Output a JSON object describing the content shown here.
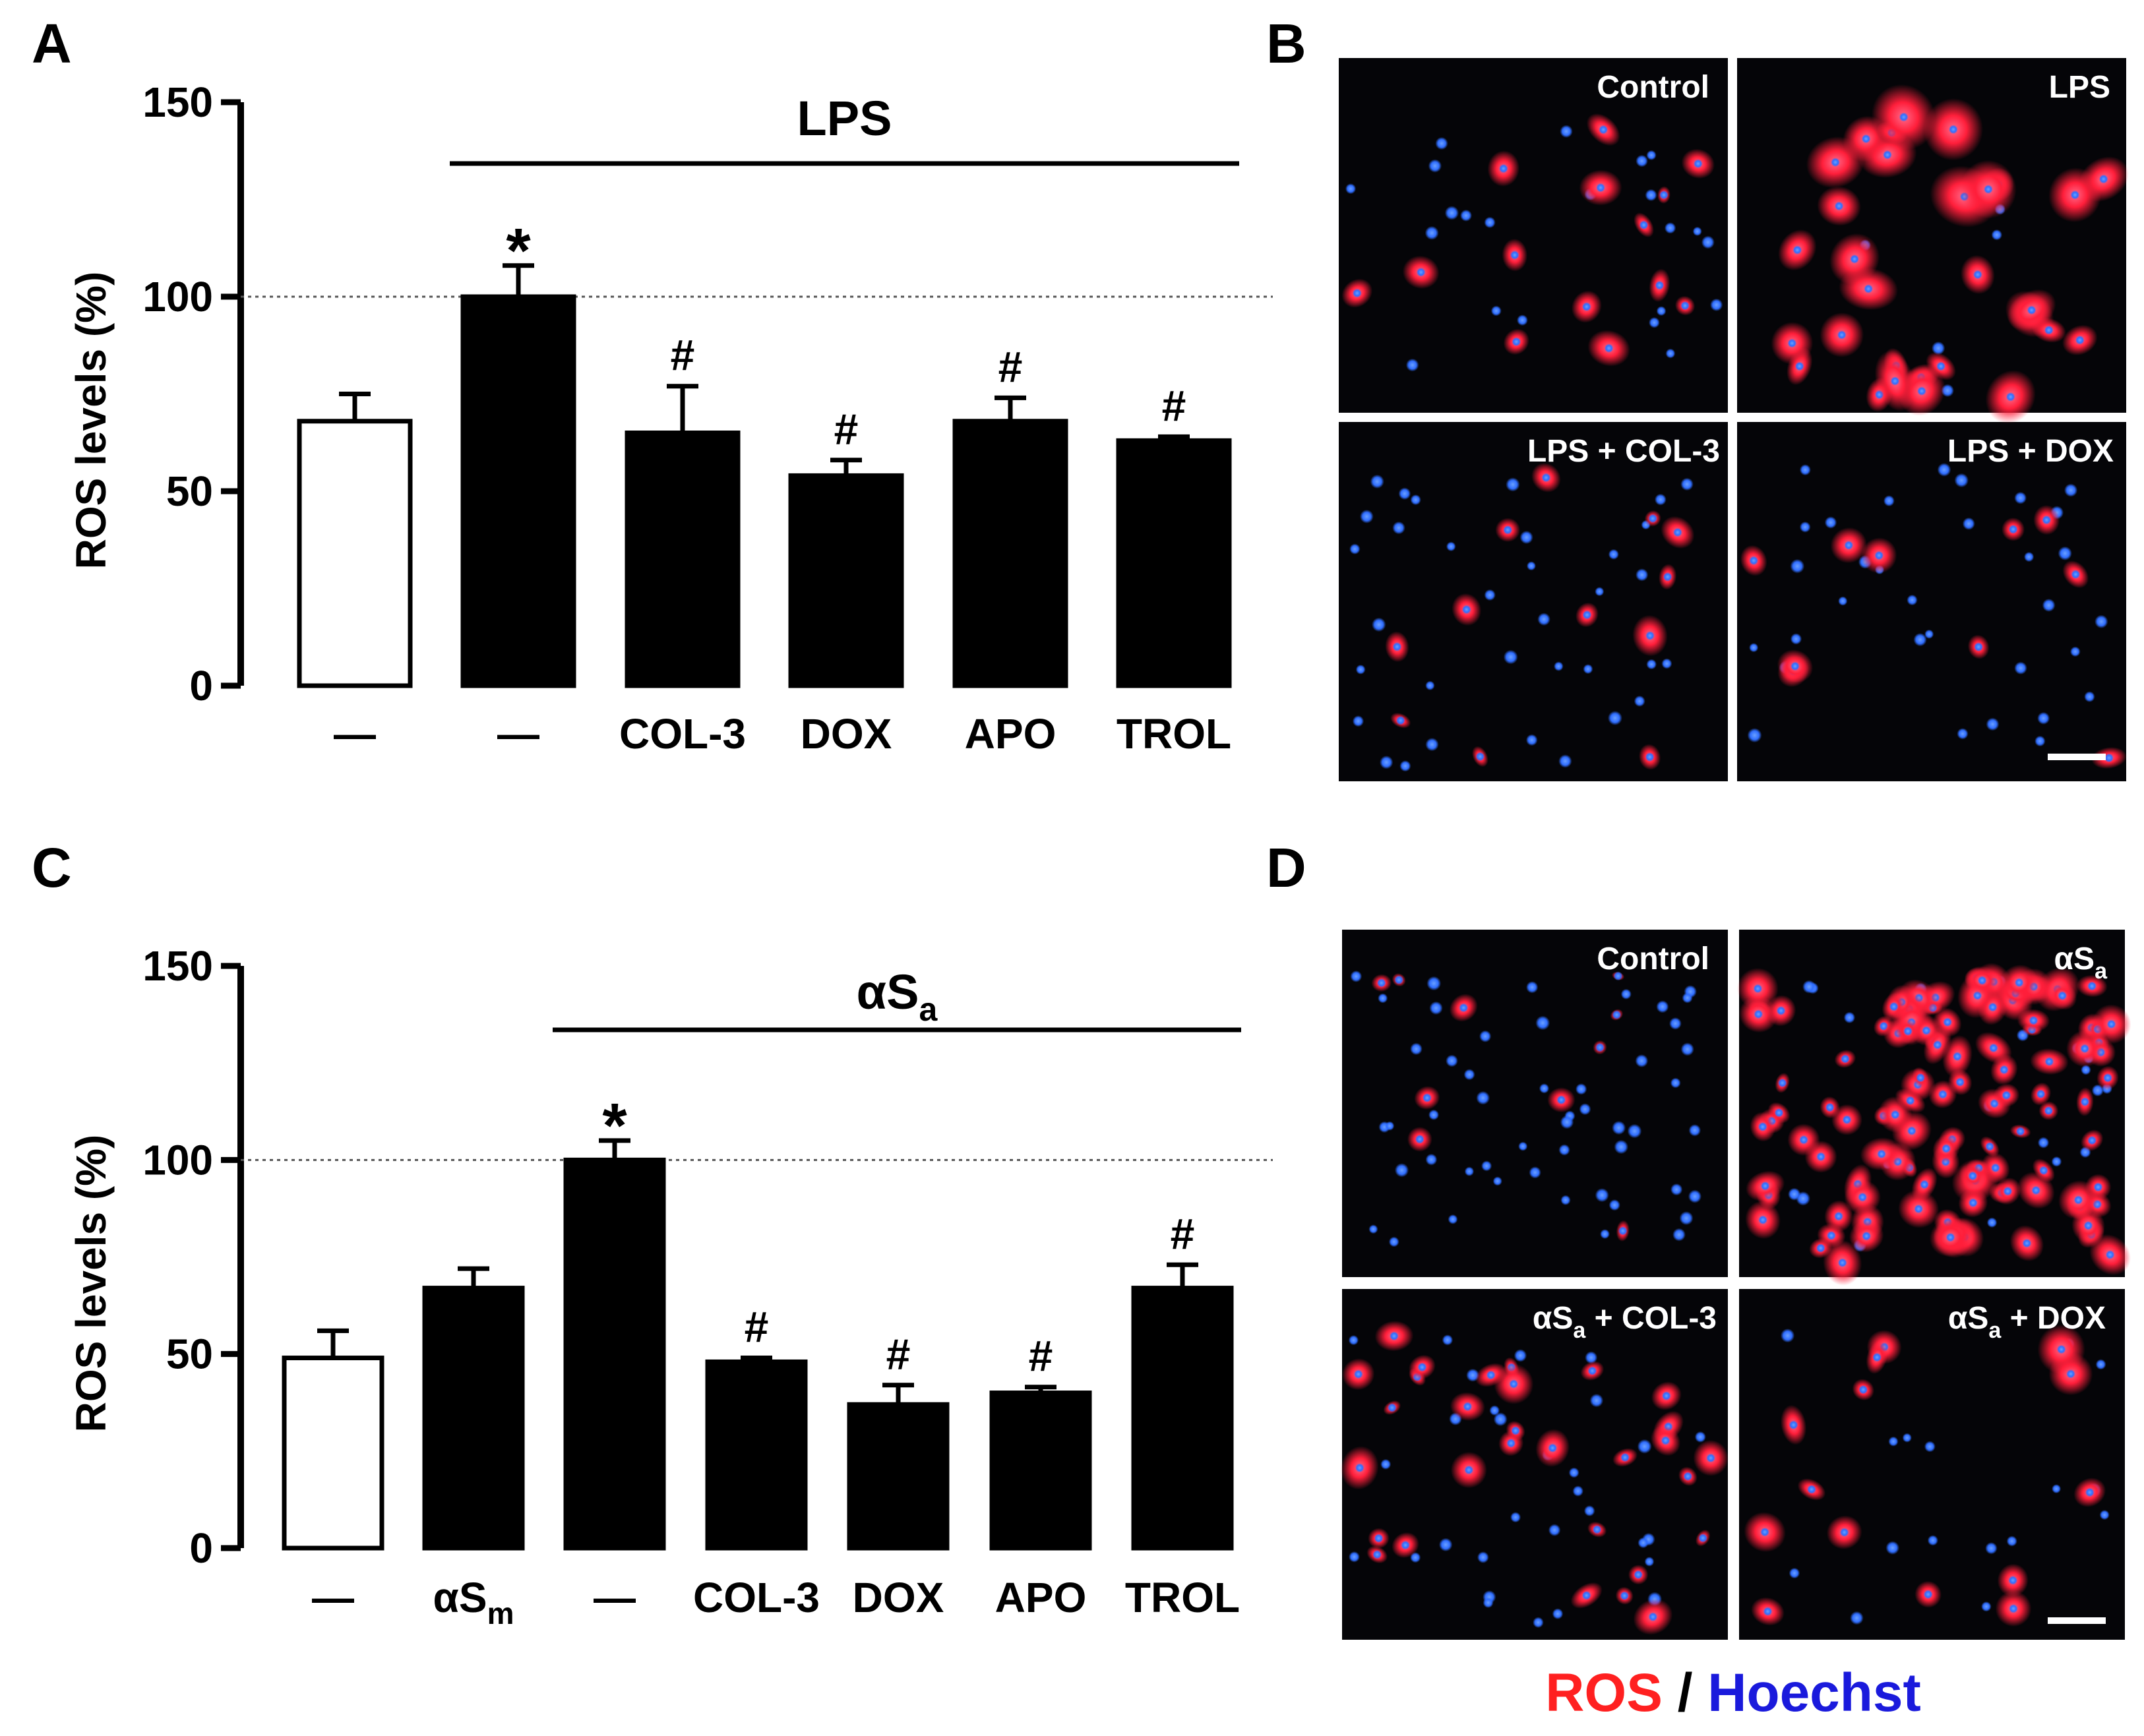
{
  "panels": {
    "A": "A",
    "B": "B",
    "C": "C",
    "D": "D"
  },
  "chart_data": [
    {
      "panel": "A",
      "type": "bar",
      "ylabel": "ROS levels (%)",
      "ylim": [
        0,
        150
      ],
      "yticks": [
        0,
        50,
        100,
        150
      ],
      "reference_line": 100,
      "group_label": "LPS",
      "group_span": [
        1,
        5
      ],
      "categories": [
        "—",
        "—",
        "COL-3",
        "DOX",
        "APO",
        "TROL"
      ],
      "values": [
        68,
        100,
        65,
        54,
        68,
        63
      ],
      "errors": [
        7,
        8,
        12,
        4,
        6,
        1
      ],
      "fills": [
        "#ffffff",
        "#000000",
        "#000000",
        "#000000",
        "#000000",
        "#000000"
      ],
      "annotations": [
        "",
        "*",
        "#",
        "#",
        "#",
        "#"
      ]
    },
    {
      "panel": "C",
      "type": "bar",
      "ylabel": "ROS levels (%)",
      "ylim": [
        0,
        150
      ],
      "yticks": [
        0,
        50,
        100,
        150
      ],
      "reference_line": 100,
      "group_label": "αS",
      "group_label_sub": "a",
      "group_span": [
        2,
        6
      ],
      "categories": [
        "—",
        "αS",
        "—",
        "COL-3",
        "DOX",
        "APO",
        "TROL"
      ],
      "category_subs": [
        "",
        "m",
        "",
        "",
        "",
        "",
        ""
      ],
      "values": [
        49,
        67,
        100,
        48,
        37,
        40,
        67
      ],
      "errors": [
        7,
        5,
        5,
        1,
        5,
        1.5,
        6
      ],
      "fills": [
        "#ffffff",
        "#000000",
        "#000000",
        "#000000",
        "#000000",
        "#000000",
        "#000000"
      ],
      "annotations": [
        "",
        "",
        "*",
        "#",
        "#",
        "#",
        "#"
      ]
    }
  ],
  "micrographs": {
    "B": {
      "top_left": "Control",
      "top_right": "LPS",
      "bottom_left": "LPS + COL-3",
      "bottom_right": "LPS + DOX"
    },
    "D": {
      "top_left": "Control",
      "top_right_main": "αS",
      "top_right_sub": "a",
      "bottom_left_main": "αS",
      "bottom_left_sub": "a",
      "bottom_left_rest": " + COL-3",
      "bottom_right_main": "αS",
      "bottom_right_sub": "a",
      "bottom_right_rest": " + DOX"
    }
  },
  "legend": {
    "ros": "ROS",
    "slash": " / ",
    "hoechst": "Hoechst",
    "ros_color": "#ff2020",
    "hoechst_color": "#1a1adc"
  }
}
